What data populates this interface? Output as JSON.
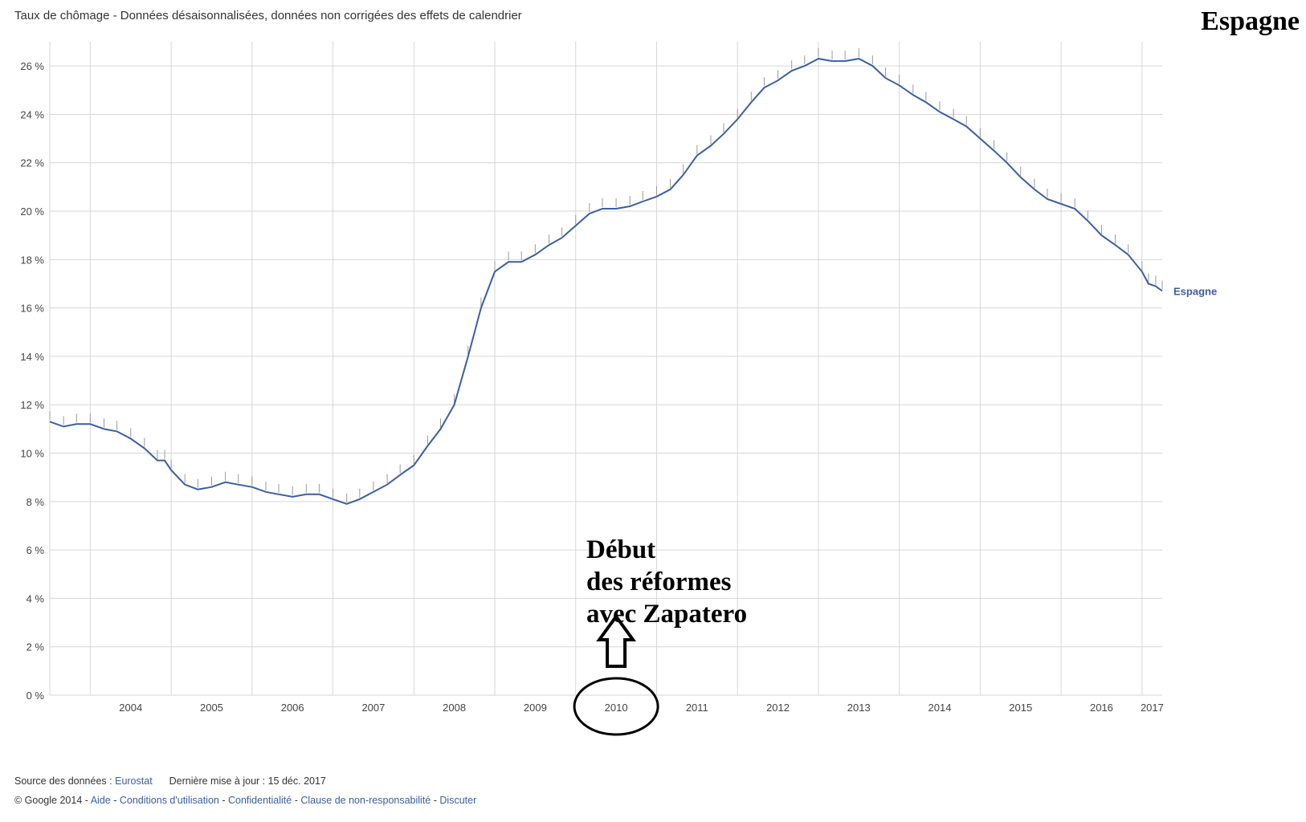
{
  "header": {
    "subtitle": "Taux de chômage - Données désaisonnalisées, données non corrigées des effets de calendrier",
    "country_title": "Espagne"
  },
  "annotation": {
    "lines": [
      "Début",
      "des réformes",
      "avec Zapatero"
    ],
    "marked_year": "2010"
  },
  "footer": {
    "source_label": "Source des données :",
    "source_link": "Eurostat",
    "update_text": "Dernière mise à jour : 15 déc. 2017",
    "copyright": "© Google 2014 -",
    "links": [
      "Aide",
      "Conditions d'utilisation",
      "Confidentialité",
      "Clause de non-responsabilité",
      "Discuter"
    ]
  },
  "colors": {
    "series": "#3b5fa0",
    "grid": "#d6d6d6",
    "error_bars": "#9a9a9a",
    "background": "#ffffff"
  },
  "chart_data": {
    "type": "line",
    "title": "",
    "xlabel": "",
    "ylabel": "",
    "x_unit": "year",
    "xlim": [
      2003.5,
      2017.25
    ],
    "ylim": [
      0,
      27
    ],
    "y_ticks": [
      0,
      2,
      4,
      6,
      8,
      10,
      12,
      14,
      16,
      18,
      20,
      22,
      24,
      26
    ],
    "y_tick_labels": [
      "0 %",
      "2 %",
      "4 %",
      "6 %",
      "8 %",
      "10 %",
      "12 %",
      "14 %",
      "16 %",
      "18 %",
      "20 %",
      "22 %",
      "24 %",
      "26 %"
    ],
    "x_tick_labels": [
      "2004",
      "2005",
      "2006",
      "2007",
      "2008",
      "2009",
      "2010",
      "2011",
      "2012",
      "2013",
      "2014",
      "2015",
      "2016",
      "2017"
    ],
    "grid": true,
    "legend": "end-of-line label",
    "series": [
      {
        "name": "Espagne",
        "points": [
          [
            2003.5,
            11.3
          ],
          [
            2003.67,
            11.1
          ],
          [
            2003.83,
            11.2
          ],
          [
            2004.0,
            11.2
          ],
          [
            2004.17,
            11.0
          ],
          [
            2004.33,
            10.9
          ],
          [
            2004.5,
            10.6
          ],
          [
            2004.67,
            10.2
          ],
          [
            2004.83,
            9.7
          ],
          [
            2004.92,
            9.7
          ],
          [
            2005.0,
            9.3
          ],
          [
            2005.17,
            8.7
          ],
          [
            2005.33,
            8.5
          ],
          [
            2005.5,
            8.6
          ],
          [
            2005.67,
            8.8
          ],
          [
            2005.83,
            8.7
          ],
          [
            2006.0,
            8.6
          ],
          [
            2006.17,
            8.4
          ],
          [
            2006.33,
            8.3
          ],
          [
            2006.5,
            8.2
          ],
          [
            2006.67,
            8.3
          ],
          [
            2006.83,
            8.3
          ],
          [
            2007.0,
            8.1
          ],
          [
            2007.17,
            7.9
          ],
          [
            2007.33,
            8.1
          ],
          [
            2007.5,
            8.4
          ],
          [
            2007.67,
            8.7
          ],
          [
            2007.83,
            9.1
          ],
          [
            2008.0,
            9.5
          ],
          [
            2008.17,
            10.3
          ],
          [
            2008.33,
            11.0
          ],
          [
            2008.5,
            12.0
          ],
          [
            2008.67,
            14.0
          ],
          [
            2008.83,
            16.0
          ],
          [
            2009.0,
            17.5
          ],
          [
            2009.17,
            17.9
          ],
          [
            2009.33,
            17.9
          ],
          [
            2009.5,
            18.2
          ],
          [
            2009.67,
            18.6
          ],
          [
            2009.83,
            18.9
          ],
          [
            2010.0,
            19.4
          ],
          [
            2010.17,
            19.9
          ],
          [
            2010.33,
            20.1
          ],
          [
            2010.5,
            20.1
          ],
          [
            2010.67,
            20.2
          ],
          [
            2010.83,
            20.4
          ],
          [
            2011.0,
            20.6
          ],
          [
            2011.17,
            20.9
          ],
          [
            2011.33,
            21.5
          ],
          [
            2011.5,
            22.3
          ],
          [
            2011.67,
            22.7
          ],
          [
            2011.83,
            23.2
          ],
          [
            2012.0,
            23.8
          ],
          [
            2012.17,
            24.5
          ],
          [
            2012.33,
            25.1
          ],
          [
            2012.5,
            25.4
          ],
          [
            2012.67,
            25.8
          ],
          [
            2012.83,
            26.0
          ],
          [
            2013.0,
            26.3
          ],
          [
            2013.17,
            26.2
          ],
          [
            2013.33,
            26.2
          ],
          [
            2013.5,
            26.3
          ],
          [
            2013.67,
            26.0
          ],
          [
            2013.83,
            25.5
          ],
          [
            2014.0,
            25.2
          ],
          [
            2014.17,
            24.8
          ],
          [
            2014.33,
            24.5
          ],
          [
            2014.5,
            24.1
          ],
          [
            2014.67,
            23.8
          ],
          [
            2014.83,
            23.5
          ],
          [
            2015.0,
            23.0
          ],
          [
            2015.17,
            22.5
          ],
          [
            2015.33,
            22.0
          ],
          [
            2015.5,
            21.4
          ],
          [
            2015.67,
            20.9
          ],
          [
            2015.83,
            20.5
          ],
          [
            2016.0,
            20.3
          ],
          [
            2016.17,
            20.1
          ],
          [
            2016.33,
            19.6
          ],
          [
            2016.5,
            19.0
          ],
          [
            2016.67,
            18.6
          ],
          [
            2016.83,
            18.2
          ],
          [
            2017.0,
            17.5
          ],
          [
            2017.08,
            17.0
          ],
          [
            2017.17,
            16.9
          ],
          [
            2017.25,
            16.7
          ]
        ]
      }
    ]
  }
}
